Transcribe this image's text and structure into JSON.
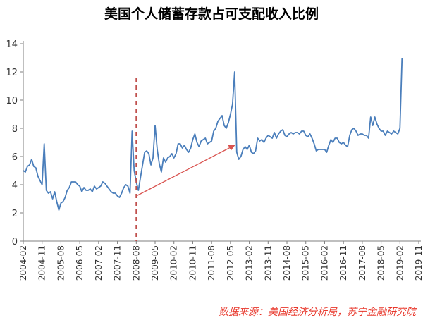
{
  "colors": {
    "line": "#4a7ebb",
    "axis": "#7f7f7f",
    "grid": "#d9d9d9",
    "event_line": "#c0504d",
    "arrow": "#d9534f",
    "source_text": "#e8372b"
  },
  "chart_data": {
    "type": "line",
    "title": "美国个人储蓄存款占可支配收入比例",
    "source": "数据来源：美国经济分析局，苏宁金融研究院",
    "xlabel": "",
    "ylabel": "",
    "ylim": [
      0,
      14
    ],
    "y_ticks": [
      0,
      2,
      4,
      6,
      8,
      10,
      12,
      14
    ],
    "grid": false,
    "x_tick_labels": [
      "2004-02",
      "2004-11",
      "2005-08",
      "2006-05",
      "2007-02",
      "2007-11",
      "2008-08",
      "2009-05",
      "2010-02",
      "2010-11",
      "2011-08",
      "2012-05",
      "2013-02",
      "2013-11",
      "2014-08",
      "2015-05",
      "2016-02",
      "2016-11",
      "2017-08",
      "2018-05",
      "2019-02",
      "2019-11"
    ],
    "x_start": "2004-02",
    "x_end": "2019-12",
    "event_marker": {
      "x": "2008-08"
    },
    "arrow": {
      "from": {
        "x": "2008-08",
        "y": 3.2
      },
      "to": {
        "x": "2012-07",
        "y": 6.8
      }
    },
    "series": [
      {
        "values": [
          5.0,
          4.9,
          5.3,
          5.4,
          5.8,
          5.3,
          5.2,
          4.6,
          4.3,
          4.0,
          6.9,
          3.6,
          3.4,
          3.5,
          3.0,
          3.5,
          2.8,
          2.2,
          2.7,
          2.8,
          3.1,
          3.6,
          3.8,
          4.2,
          4.2,
          4.2,
          4.0,
          3.9,
          3.5,
          3.8,
          3.6,
          3.6,
          3.7,
          3.5,
          3.9,
          3.7,
          3.8,
          3.9,
          4.2,
          4.1,
          3.9,
          3.7,
          3.5,
          3.4,
          3.4,
          3.2,
          3.1,
          3.4,
          3.8,
          4.0,
          3.9,
          3.4,
          7.8,
          5.0,
          4.2,
          3.6,
          4.5,
          5.4,
          6.3,
          6.4,
          6.2,
          5.4,
          5.9,
          8.2,
          6.5,
          5.5,
          4.9,
          5.9,
          5.6,
          5.9,
          6.0,
          6.2,
          5.9,
          6.2,
          6.9,
          6.9,
          6.6,
          6.8,
          6.5,
          6.3,
          6.6,
          7.2,
          7.6,
          7.0,
          6.7,
          7.1,
          7.2,
          7.3,
          6.9,
          7.0,
          7.1,
          7.8,
          8.0,
          8.5,
          8.7,
          8.9,
          8.2,
          8.0,
          8.4,
          9.0,
          9.7,
          12.0,
          6.3,
          5.8,
          6.0,
          6.5,
          6.7,
          6.5,
          6.8,
          6.3,
          6.2,
          6.4,
          7.3,
          7.1,
          7.2,
          7.0,
          7.3,
          7.5,
          7.4,
          7.3,
          7.7,
          7.3,
          7.6,
          7.8,
          7.9,
          7.5,
          7.4,
          7.6,
          7.7,
          7.6,
          7.7,
          7.7,
          7.6,
          7.8,
          7.8,
          7.5,
          7.4,
          7.6,
          7.3,
          6.9,
          6.4,
          6.5,
          6.5,
          6.5,
          6.5,
          6.3,
          6.8,
          7.2,
          7.0,
          7.3,
          7.3,
          7.0,
          6.9,
          7.0,
          6.8,
          6.7,
          7.5,
          7.9,
          8.0,
          7.8,
          7.5,
          7.6,
          7.6,
          7.5,
          7.5,
          7.3,
          8.8,
          8.2,
          8.8,
          8.3,
          8.0,
          7.8,
          7.8,
          7.5,
          7.8,
          7.7,
          7.6,
          7.8,
          7.7,
          7.6,
          8.0,
          13.0
        ]
      }
    ]
  }
}
